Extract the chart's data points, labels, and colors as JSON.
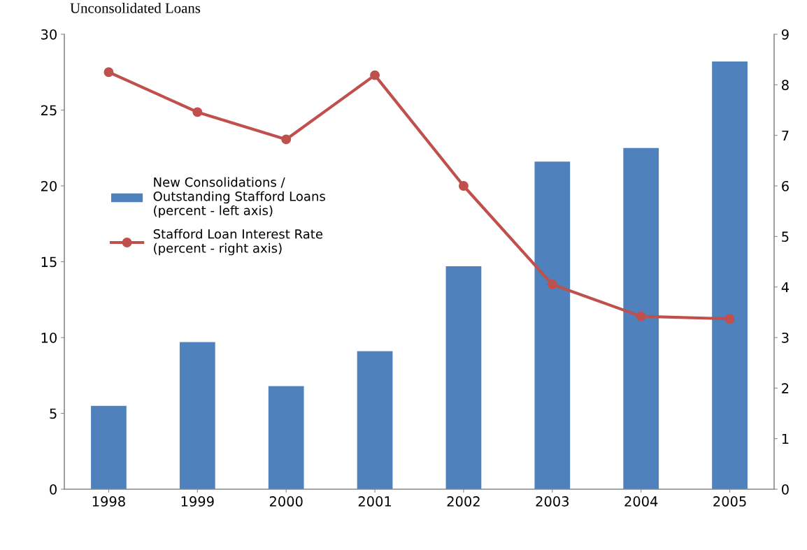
{
  "chart_data": {
    "type": "bar",
    "title": "Unconsolidated Loans",
    "categories": [
      "1998",
      "1999",
      "2000",
      "2001",
      "2002",
      "2003",
      "2004",
      "2005"
    ],
    "series": [
      {
        "name": "New Consolidations /\nOutstanding Stafford Loans\n(percent - left axis)",
        "color": "#4f81bd",
        "values": [
          5.5,
          9.7,
          6.8,
          9.1,
          14.7,
          21.6,
          22.5,
          28.2
        ]
      },
      {
        "name": "Stafford Loan Interest Rate\n(percent - right axis)",
        "type": "line",
        "axis": "y2",
        "color": "#c0504d",
        "marker": "circle",
        "values": [
          8.25,
          7.46,
          6.92,
          8.19,
          6.0,
          4.05,
          3.42,
          3.37
        ]
      }
    ],
    "ylim": [
      0,
      30
    ],
    "yticks": [
      0,
      5,
      10,
      15,
      20,
      25,
      30
    ],
    "y2lim": [
      0,
      9
    ],
    "y2ticks": [
      0,
      1,
      2,
      3,
      4,
      5,
      6,
      7,
      8,
      9
    ],
    "grid": false,
    "legend": "left"
  }
}
